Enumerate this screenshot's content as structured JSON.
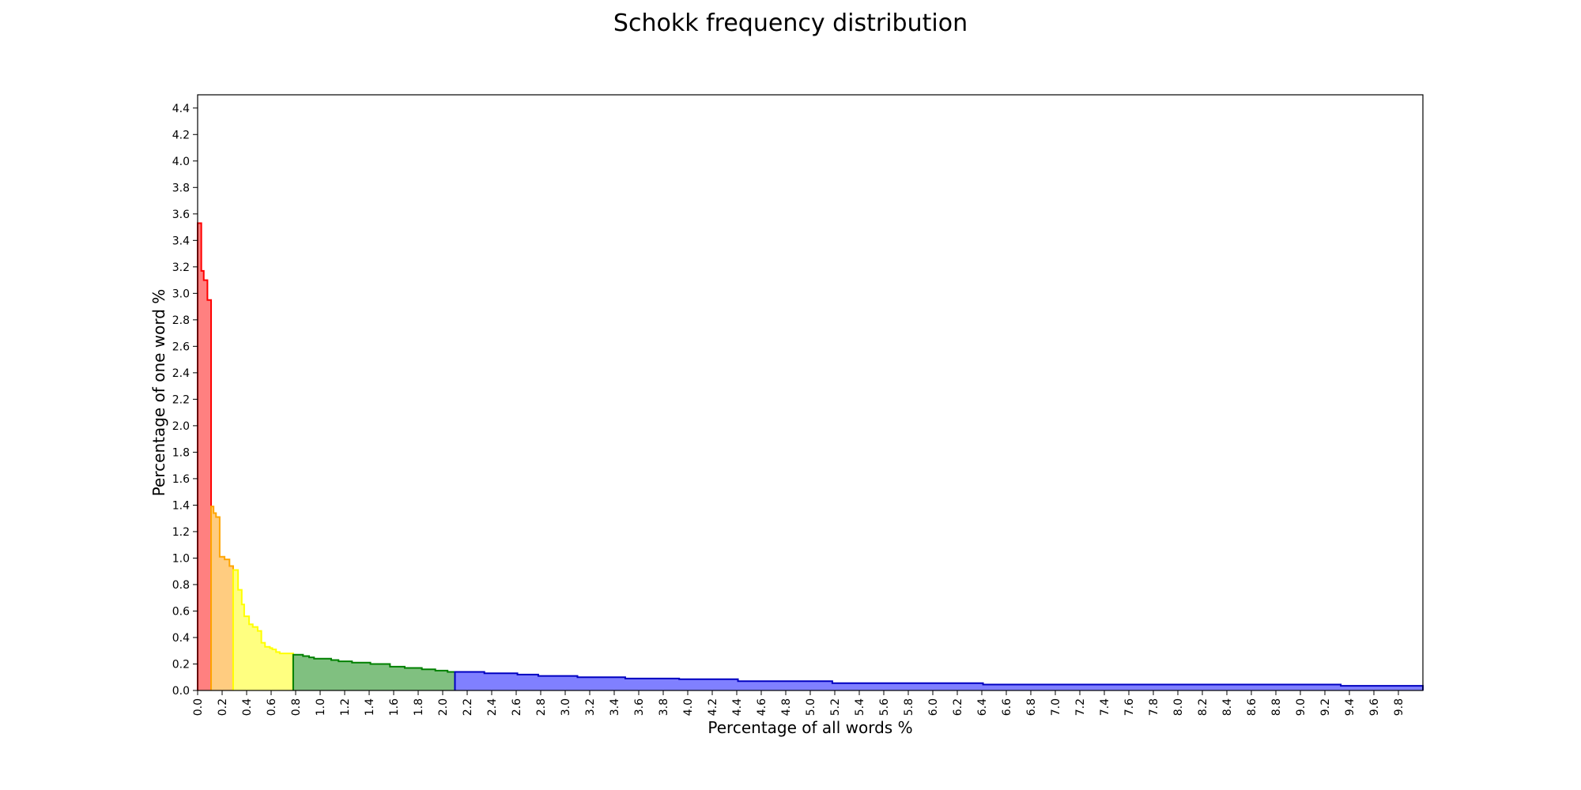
{
  "chart_data": {
    "type": "area",
    "subtype": "step",
    "title": "Schokk frequency distribution",
    "xlabel": "Percentage of all words %",
    "ylabel": "Percentage of one word %",
    "xlim": [
      0,
      10.0
    ],
    "ylim": [
      0,
      4.5
    ],
    "grid": false,
    "x_ticks": [
      "0.0",
      "0.2",
      "0.4",
      "0.6",
      "0.8",
      "1.0",
      "1.2",
      "1.4",
      "1.6",
      "1.8",
      "2.0",
      "2.2",
      "2.4",
      "2.6",
      "2.8",
      "3.0",
      "3.2",
      "3.4",
      "3.6",
      "3.8",
      "4.0",
      "4.2",
      "4.4",
      "4.6",
      "4.8",
      "5.0",
      "5.2",
      "5.4",
      "5.6",
      "5.8",
      "6.0",
      "6.2",
      "6.4",
      "6.6",
      "6.8",
      "7.0",
      "7.2",
      "7.4",
      "7.6",
      "7.8",
      "8.0",
      "8.2",
      "8.4",
      "8.6",
      "8.8",
      "9.0",
      "9.2",
      "9.4",
      "9.6",
      "9.8"
    ],
    "y_ticks": [
      "0.0",
      "0.2",
      "0.4",
      "0.6",
      "0.8",
      "1.0",
      "1.2",
      "1.4",
      "1.6",
      "1.8",
      "2.0",
      "2.2",
      "2.4",
      "2.6",
      "2.8",
      "3.0",
      "3.2",
      "3.4",
      "3.6",
      "3.8",
      "4.0",
      "4.2",
      "4.4"
    ],
    "series": [
      {
        "fill": "#ff8080",
        "line": "#ff0000",
        "points": [
          [
            0.0,
            3.53
          ],
          [
            0.03,
            3.17
          ],
          [
            0.05,
            3.1
          ],
          [
            0.08,
            2.95
          ],
          [
            0.11,
            2.95
          ]
        ]
      },
      {
        "fill": "#ffcc80",
        "line": "#ffa500",
        "points": [
          [
            0.11,
            1.39
          ],
          [
            0.13,
            1.34
          ],
          [
            0.15,
            1.31
          ],
          [
            0.18,
            1.01
          ],
          [
            0.22,
            0.99
          ],
          [
            0.26,
            0.94
          ],
          [
            0.29,
            0.94
          ]
        ]
      },
      {
        "fill": "#ffff80",
        "line": "#ffff00",
        "points": [
          [
            0.29,
            0.91
          ],
          [
            0.33,
            0.76
          ],
          [
            0.36,
            0.65
          ],
          [
            0.38,
            0.56
          ],
          [
            0.42,
            0.5
          ],
          [
            0.45,
            0.48
          ],
          [
            0.49,
            0.45
          ],
          [
            0.52,
            0.36
          ],
          [
            0.55,
            0.33
          ],
          [
            0.59,
            0.32
          ],
          [
            0.61,
            0.31
          ],
          [
            0.64,
            0.29
          ],
          [
            0.67,
            0.28
          ],
          [
            0.78,
            0.28
          ]
        ]
      },
      {
        "fill": "#80c080",
        "line": "#008000",
        "points": [
          [
            0.78,
            0.27
          ],
          [
            0.86,
            0.26
          ],
          [
            0.91,
            0.25
          ],
          [
            0.95,
            0.24
          ],
          [
            1.09,
            0.23
          ],
          [
            1.15,
            0.22
          ],
          [
            1.26,
            0.21
          ],
          [
            1.41,
            0.2
          ],
          [
            1.57,
            0.18
          ],
          [
            1.69,
            0.17
          ],
          [
            1.83,
            0.16
          ],
          [
            1.94,
            0.15
          ],
          [
            2.04,
            0.14
          ],
          [
            2.1,
            0.14
          ]
        ]
      },
      {
        "fill": "#8080ff",
        "line": "#0000c0",
        "points": [
          [
            2.1,
            0.14
          ],
          [
            2.34,
            0.13
          ],
          [
            2.61,
            0.12
          ],
          [
            2.78,
            0.11
          ],
          [
            3.1,
            0.1
          ],
          [
            3.49,
            0.09
          ],
          [
            3.93,
            0.085
          ],
          [
            4.41,
            0.07
          ],
          [
            5.18,
            0.055
          ],
          [
            6.41,
            0.045
          ],
          [
            9.33,
            0.035
          ],
          [
            10.0,
            0.035
          ]
        ]
      }
    ]
  }
}
